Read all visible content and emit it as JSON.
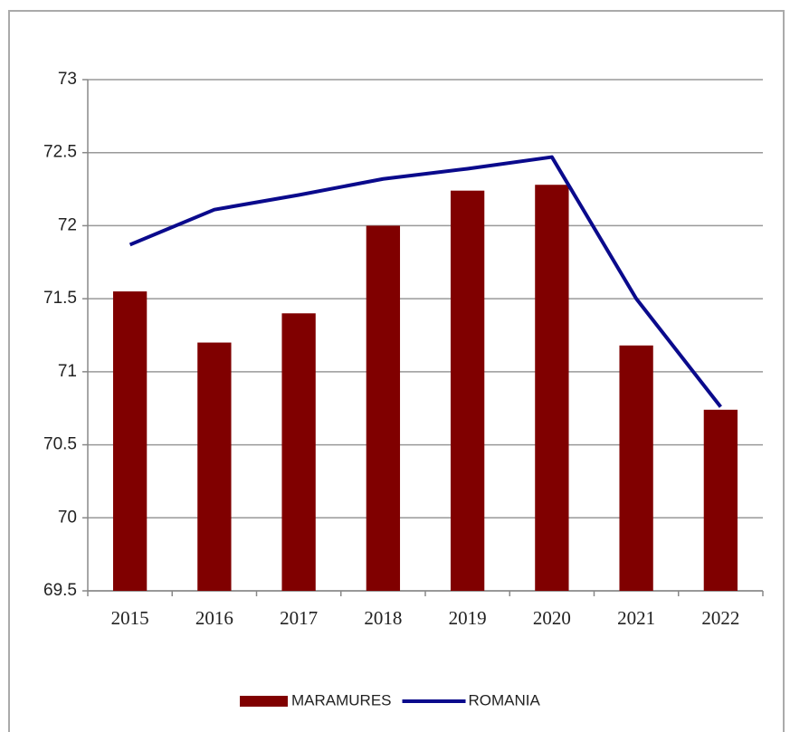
{
  "chart_data": {
    "type": "bar",
    "categories": [
      "2015",
      "2016",
      "2017",
      "2018",
      "2019",
      "2020",
      "2021",
      "2022"
    ],
    "series": [
      {
        "name": "MARAMURES",
        "type": "bar",
        "color": "#800000",
        "values": [
          71.55,
          71.2,
          71.4,
          72.0,
          72.24,
          72.28,
          71.18,
          70.74
        ]
      },
      {
        "name": "ROMANIA",
        "type": "line",
        "color": "#0a0a8c",
        "values": [
          71.87,
          72.11,
          72.21,
          72.32,
          72.39,
          72.47,
          71.5,
          70.76
        ]
      }
    ],
    "ylim": [
      69.5,
      73
    ],
    "yticks": [
      69.5,
      70,
      70.5,
      71,
      71.5,
      72,
      72.5,
      73
    ],
    "grid": true,
    "legend": "bottom"
  }
}
